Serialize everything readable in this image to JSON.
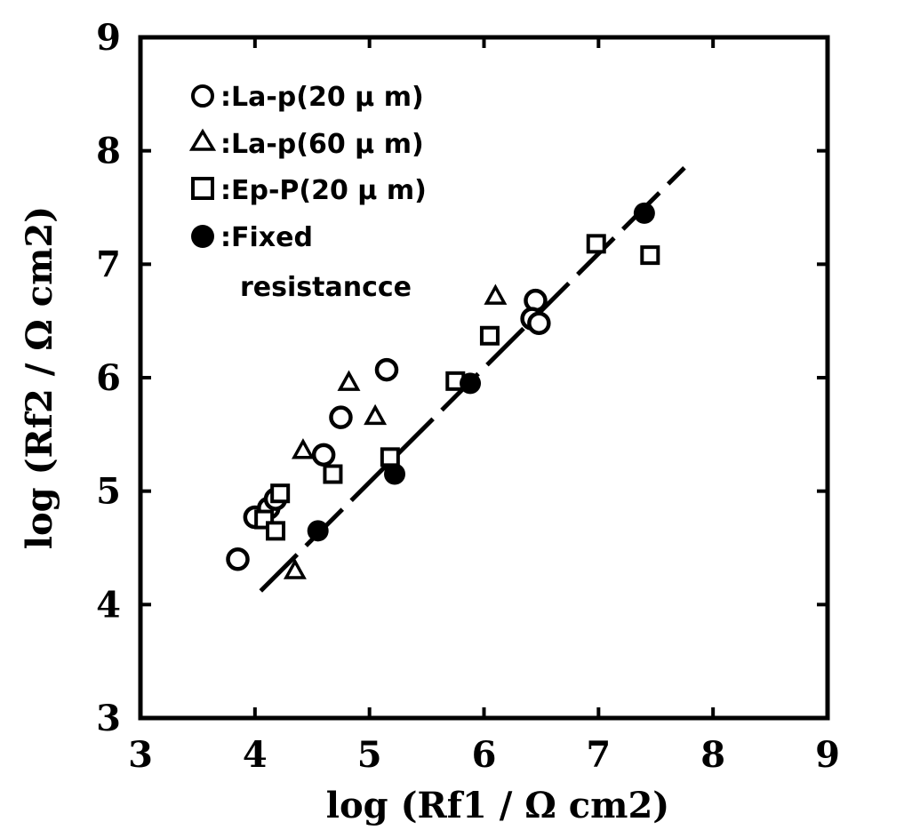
{
  "chart_data": {
    "type": "scatter",
    "title": "",
    "xlabel": "log (Rf1 / Ω cm2)",
    "ylabel": "log (Rf2 / Ω cm2)",
    "xlim": [
      3,
      9
    ],
    "ylim": [
      3,
      9
    ],
    "xticks": [
      "3",
      "4",
      "5",
      "6",
      "7",
      "8",
      "9"
    ],
    "yticks": [
      "3",
      "4",
      "5",
      "6",
      "7",
      "8",
      "9"
    ],
    "grid": false,
    "legend_position": "top-left",
    "series": [
      {
        "name": ":La-p(20 μ m)",
        "marker": "circle-open",
        "points": [
          [
            3.85,
            4.4
          ],
          [
            4.0,
            4.77
          ],
          [
            4.12,
            4.85
          ],
          [
            4.18,
            4.93
          ],
          [
            4.6,
            5.32
          ],
          [
            4.75,
            5.65
          ],
          [
            5.15,
            6.07
          ],
          [
            6.45,
            6.68
          ],
          [
            6.42,
            6.52
          ],
          [
            6.48,
            6.48
          ]
        ]
      },
      {
        "name": ":La-p(60 μ m)",
        "marker": "triangle-open",
        "points": [
          [
            4.35,
            4.3
          ],
          [
            4.42,
            5.36
          ],
          [
            4.82,
            5.96
          ],
          [
            5.05,
            5.66
          ],
          [
            6.1,
            6.72
          ]
        ]
      },
      {
        "name": ":Ep-P(20 μ m)",
        "marker": "square-open",
        "points": [
          [
            4.08,
            4.75
          ],
          [
            4.18,
            4.65
          ],
          [
            4.22,
            4.98
          ],
          [
            4.68,
            5.15
          ],
          [
            5.18,
            5.3
          ],
          [
            5.75,
            5.97
          ],
          [
            6.05,
            6.37
          ],
          [
            6.98,
            7.18
          ],
          [
            7.45,
            7.08
          ]
        ]
      },
      {
        "name": ":Fixed",
        "name_line2": "resistancce",
        "marker": "circle-filled",
        "points": [
          [
            4.55,
            4.65
          ],
          [
            5.22,
            5.15
          ],
          [
            5.88,
            5.95
          ],
          [
            7.4,
            7.45
          ]
        ]
      }
    ],
    "fit_line": {
      "style": "dashed",
      "points": [
        [
          4.05,
          4.12
        ],
        [
          7.75,
          7.85
        ]
      ]
    }
  }
}
